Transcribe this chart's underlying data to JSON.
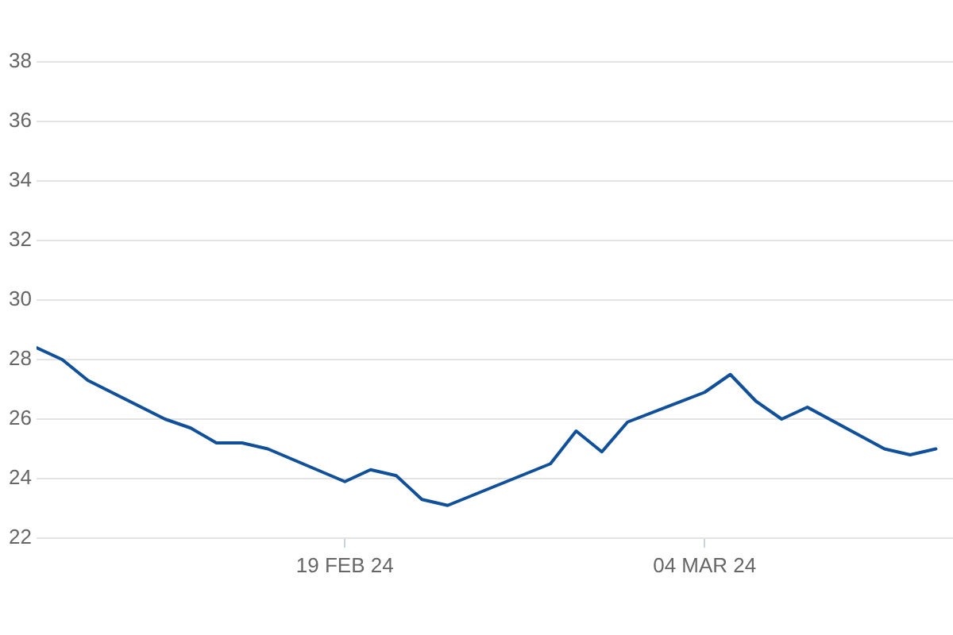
{
  "chart_data": {
    "type": "line",
    "x": [
      "2024-02-07",
      "2024-02-08",
      "2024-02-09",
      "2024-02-12",
      "2024-02-13",
      "2024-02-14",
      "2024-02-15",
      "2024-02-16",
      "2024-02-19",
      "2024-02-20",
      "2024-02-21",
      "2024-02-22",
      "2024-02-23",
      "2024-02-27",
      "2024-02-28",
      "2024-02-29",
      "2024-03-01",
      "2024-03-04",
      "2024-03-05",
      "2024-03-06",
      "2024-03-07",
      "2024-03-08",
      "2024-03-11",
      "2024-03-12",
      "2024-03-13"
    ],
    "series": [
      {
        "color": "#10509a",
        "values": [
          28.4,
          28.0,
          27.3,
          26.0,
          25.7,
          25.2,
          25.2,
          25.0,
          23.9,
          24.3,
          24.1,
          23.3,
          23.1,
          24.5,
          25.6,
          24.9,
          25.9,
          26.9,
          27.5,
          26.6,
          26.0,
          26.4,
          25.0,
          24.8,
          25.0
        ]
      }
    ],
    "xlim": [
      "2024-02-07",
      "2024-03-13T16:00"
    ],
    "xticks": [
      {
        "value": "2024-02-19",
        "label": "19 FEB 24"
      },
      {
        "value": "2024-03-04",
        "label": "04 MAR 24"
      }
    ],
    "ylim": [
      22,
      38
    ],
    "yticks": [
      22,
      24,
      26,
      28,
      30,
      32,
      34,
      36,
      38
    ],
    "grid": "y",
    "line_style": "solid"
  }
}
